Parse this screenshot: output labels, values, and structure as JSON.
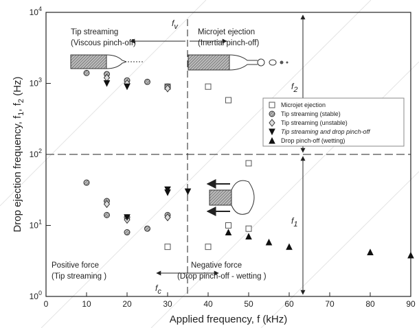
{
  "chart_data": {
    "type": "scatter",
    "xlabel": "Applied frequency, f (kHz)",
    "ylabel": [
      "Drop ejection frequency, f",
      "1",
      ", f",
      "2",
      " (Hz)"
    ],
    "xlim": [
      0,
      90
    ],
    "xticks": [
      0,
      10,
      20,
      30,
      40,
      50,
      60,
      70,
      80,
      90
    ],
    "ylim": [
      1,
      10000
    ],
    "log_y": true,
    "yticks": [
      {
        "value": 1,
        "label": "10",
        "exponent": "0"
      },
      {
        "value": 10,
        "label": "10",
        "exponent": "1"
      },
      {
        "value": 100,
        "label": "10",
        "exponent": "2"
      },
      {
        "value": 1000,
        "label": "10",
        "exponent": "3"
      },
      {
        "value": 10000,
        "label": "10",
        "exponent": "4"
      }
    ],
    "legend": "upper right",
    "series": [
      {
        "name": "Microjet ejection",
        "marker": "square-open",
        "color": "#555555",
        "x": [
          30,
          30,
          40,
          40,
          45,
          45,
          50,
          50
        ],
        "values": [
          5,
          900,
          900,
          5,
          580,
          10,
          9,
          75
        ]
      },
      {
        "name": "Tip streaming (stable)",
        "marker": "circle-hatch",
        "color": "#333333",
        "x": [
          10,
          15,
          20,
          25,
          30,
          10,
          15,
          15,
          20,
          20,
          25,
          30
        ],
        "values": [
          1400,
          1350,
          1100,
          1050,
          900,
          40,
          22,
          14,
          13,
          8,
          9,
          14
        ]
      },
      {
        "name": "Tip streaming (unstable)",
        "marker": "diamond",
        "color": "#333333",
        "x": [
          15,
          20,
          30,
          15,
          20,
          30
        ],
        "values": [
          1200,
          1000,
          850,
          20,
          12,
          13
        ]
      },
      {
        "name": "Tip streaming and drop pinch-off",
        "marker": "triangle-down",
        "color": "#111111",
        "x": [
          15,
          20,
          20,
          30,
          30,
          35
        ],
        "values": [
          1000,
          900,
          13,
          32,
          29,
          30
        ]
      },
      {
        "name": "Drop pinch-off (wetting)",
        "marker": "triangle-up",
        "color": "#111111",
        "x": [
          45,
          50,
          55,
          60,
          80,
          90
        ],
        "values": [
          8,
          7,
          5.8,
          5,
          4.2,
          3.8
        ]
      }
    ],
    "annotations": [
      "Tip streaming",
      "(Viscous pinch-off)",
      "Microjet ejection",
      "(Inertial pinch-off)",
      "Positive force",
      "(Tip streaming )",
      "Negative force",
      "(Drop pinch-off - wetting )"
    ],
    "symbols": [
      [
        "f",
        "v"
      ],
      [
        "f",
        "2"
      ],
      [
        "f",
        "1"
      ],
      [
        "f",
        "c"
      ]
    ]
  }
}
